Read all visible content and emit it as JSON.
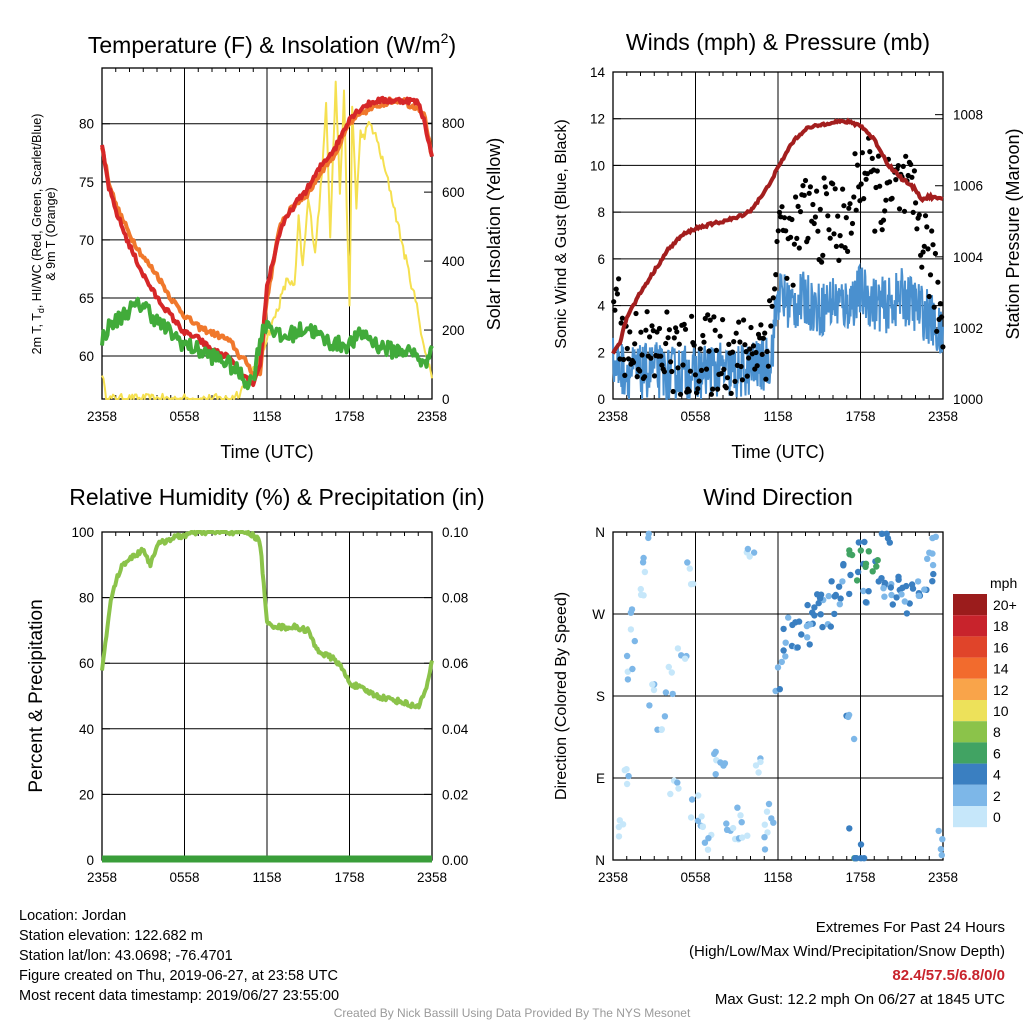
{
  "colors": {
    "temp": "#d62728",
    "dew": "#41ab3a",
    "heat_index": "#c4182b",
    "t9m": "#f0782c",
    "solar": "#f5e050",
    "wind": "#4a90cf",
    "gust": "#000000",
    "pressure": "#a31e1e",
    "rh": "#8bc34a",
    "precip": "#3a9e3a"
  },
  "chart_data": [
    {
      "id": "temperature",
      "type": "line",
      "title_main": "Temperature (F) & Insolation (W/m",
      "title_sup": "2",
      "title_end": ")",
      "xlabel": "Time (UTC)",
      "ylabel_line1": "2m T, T",
      "ylabel_sub": "d",
      "ylabel_line1_end": ", HI/WC (Red, Green, Scarlet/Blue)",
      "ylabel_line2": "& 9m T (Orange)",
      "y2label": "Solar Insolation (Yellow)",
      "xticks": [
        "2358",
        "0558",
        "1158",
        "1758",
        "2358"
      ],
      "yticks": [
        "60",
        "65",
        "70",
        "75",
        "80"
      ],
      "y2ticks": [
        "0",
        "200",
        "400",
        "600",
        "800"
      ],
      "ylim": [
        56.3,
        84.8
      ],
      "y2lim": [
        0,
        960
      ],
      "x_hours": [
        0,
        24
      ],
      "series": [
        {
          "key": "t9m",
          "hours": [
            0,
            0.5,
            1,
            2,
            3,
            4,
            5,
            6,
            7,
            8,
            9,
            9.5,
            10,
            10.5,
            11,
            11.5,
            12,
            13,
            14,
            15,
            16,
            17,
            18,
            19,
            20,
            21,
            22,
            22.5,
            23,
            23.5,
            24
          ],
          "values": [
            78,
            75,
            73,
            70.5,
            68.5,
            67,
            65,
            63.5,
            62.5,
            62,
            61.5,
            61,
            60,
            59.5,
            58.5,
            58.5,
            65,
            71.5,
            73,
            74,
            76,
            77.5,
            80,
            81,
            81.5,
            82,
            82,
            81.5,
            81.5,
            80.5,
            77
          ]
        },
        {
          "key": "temp",
          "hours": [
            0,
            0.5,
            1,
            2,
            3,
            4,
            5,
            6,
            7,
            8,
            9,
            9.5,
            10,
            10.5,
            11,
            11.5,
            12,
            13,
            14,
            15,
            16,
            17,
            18,
            19,
            20,
            21,
            22,
            22.5,
            23,
            23.5,
            24
          ],
          "values": [
            78,
            74.5,
            72.5,
            69.5,
            67,
            65,
            63.5,
            62,
            61.5,
            60.5,
            60,
            59.5,
            58.5,
            58,
            57.5,
            59,
            66,
            71,
            73,
            74.5,
            76.5,
            78,
            80.5,
            81.5,
            82,
            82,
            82,
            82,
            81.8,
            80,
            77
          ]
        },
        {
          "key": "dew",
          "hours": [
            0,
            0.5,
            1,
            2,
            3,
            4,
            5,
            6,
            7,
            8,
            9,
            10,
            10.5,
            11,
            11.5,
            12,
            13,
            14,
            15,
            16,
            17,
            18,
            19,
            20,
            21,
            22,
            23,
            23.5,
            24
          ],
          "values": [
            61.5,
            62.5,
            63,
            64,
            64.5,
            63,
            62,
            61,
            60.5,
            60,
            59.5,
            58.5,
            57.8,
            58,
            61.5,
            63,
            61.5,
            62,
            62.5,
            61.5,
            61,
            61,
            62,
            61,
            60.5,
            60.5,
            60,
            59,
            61.5
          ]
        },
        {
          "key": "solar",
          "axis": "y2",
          "hours": [
            0,
            0.2,
            0.5,
            5,
            9,
            9.5,
            10,
            10.5,
            11,
            11.5,
            12,
            12.5,
            13,
            13.5,
            14,
            14.3,
            14.6,
            15,
            15.5,
            16,
            16.3,
            16.6,
            17,
            17.3,
            17.6,
            18,
            18.2,
            18.5,
            18.8,
            19,
            19.5,
            20,
            21,
            22,
            23,
            23.5,
            24
          ],
          "values": [
            80,
            20,
            0,
            0,
            0,
            5,
            20,
            50,
            80,
            120,
            180,
            230,
            290,
            350,
            320,
            520,
            380,
            580,
            430,
            650,
            870,
            480,
            920,
            600,
            880,
            260,
            850,
            560,
            770,
            760,
            800,
            750,
            600,
            420,
            250,
            130,
            70
          ]
        }
      ]
    },
    {
      "id": "winds",
      "type": "line",
      "title": "Winds (mph) & Pressure (mb)",
      "xlabel": "Time (UTC)",
      "ylabel": "Sonic Wind & Gust (Blue, Black)",
      "y2label": "Station Pressure (Maroon)",
      "xticks": [
        "2358",
        "0558",
        "1158",
        "1758",
        "2358"
      ],
      "yticks": [
        "0",
        "2",
        "4",
        "6",
        "8",
        "10",
        "12",
        "14"
      ],
      "y2ticks": [
        "1000",
        "1002",
        "1004",
        "1006",
        "1008"
      ],
      "ylim": [
        0,
        14
      ],
      "y2lim": [
        1000,
        1009.2
      ],
      "x_hours": [
        0,
        24
      ],
      "series": [
        {
          "key": "wind",
          "hours": [
            0,
            1,
            2,
            3,
            4,
            5,
            6,
            7,
            8,
            9,
            10,
            11,
            11.5,
            12,
            13,
            14,
            15,
            16,
            17,
            18,
            19,
            20,
            21,
            22,
            23,
            24
          ],
          "values": [
            1.5,
            1.2,
            1.1,
            1.3,
            1.0,
            1.2,
            1.0,
            1.3,
            1.2,
            1.1,
            1.3,
            1.5,
            1.8,
            4.5,
            4.0,
            4.3,
            3.8,
            4.2,
            4.0,
            4.6,
            4.1,
            4.0,
            4.4,
            4.0,
            3.5,
            2.5
          ]
        },
        {
          "key": "gust",
          "hours": [
            0,
            1,
            2,
            3,
            4,
            5,
            6,
            7,
            8,
            9,
            10,
            11,
            11.5,
            12,
            13,
            14,
            15,
            16,
            17,
            18,
            19,
            20,
            21,
            22,
            23,
            24
          ],
          "values": [
            5,
            2,
            2.5,
            1.8,
            2.2,
            1.5,
            2.0,
            1.8,
            2.2,
            1.6,
            2.3,
            2.5,
            3,
            7.5,
            6.5,
            8,
            7.5,
            8,
            7,
            10,
            9,
            8.5,
            9,
            8,
            6,
            3
          ]
        },
        {
          "key": "pressure",
          "axis": "y2",
          "hours": [
            0,
            0.5,
            1,
            2,
            3,
            4,
            5,
            6,
            7,
            8,
            9,
            10,
            11,
            12,
            13,
            14,
            15,
            16,
            17,
            18,
            19,
            20,
            21,
            22,
            22.5,
            23,
            24
          ],
          "values": [
            1001.3,
            1001.6,
            1002.3,
            1003.0,
            1003.6,
            1004.2,
            1004.6,
            1004.8,
            1004.9,
            1005.0,
            1005.1,
            1005.3,
            1005.8,
            1006.5,
            1007.2,
            1007.6,
            1007.7,
            1007.8,
            1007.8,
            1007.7,
            1007.3,
            1006.6,
            1006.2,
            1005.9,
            1005.6,
            1005.7,
            1005.6
          ]
        }
      ]
    },
    {
      "id": "humidity",
      "type": "line",
      "title": "Relative Humidity (%) & Precipitation (in)",
      "ylabel": "Percent & Precipitation",
      "xticks": [
        "2358",
        "0558",
        "1158",
        "1758",
        "2358"
      ],
      "yticks": [
        "0",
        "20",
        "40",
        "60",
        "80",
        "100"
      ],
      "y2ticks": [
        "0.00",
        "0.02",
        "0.04",
        "0.06",
        "0.08",
        "0.10"
      ],
      "ylim": [
        0,
        100
      ],
      "y2lim": [
        0,
        0.1
      ],
      "x_hours": [
        0,
        24
      ],
      "series": [
        {
          "key": "rh",
          "hours": [
            0,
            0.3,
            0.6,
            1,
            1.5,
            2,
            2.5,
            3,
            3.5,
            4,
            5,
            6,
            7,
            8,
            9,
            10,
            10.5,
            11,
            11.5,
            12,
            13,
            14,
            15,
            15.5,
            16,
            17,
            17.5,
            18,
            19,
            20,
            21,
            22,
            22.5,
            23,
            23.5,
            24
          ],
          "values": [
            58,
            68,
            78,
            85,
            90,
            92,
            93,
            95,
            90,
            96,
            98,
            99,
            100,
            100,
            100,
            100,
            100,
            99,
            97,
            72,
            71,
            71,
            70,
            65,
            63,
            61,
            58,
            54,
            52,
            50,
            49,
            48,
            47,
            47,
            51,
            60
          ]
        },
        {
          "key": "precip",
          "axis": "y2",
          "hours": [
            0,
            24
          ],
          "values": [
            0,
            0
          ]
        }
      ]
    },
    {
      "id": "direction",
      "type": "scatter",
      "title": "Wind Direction",
      "ylabel": "Direction (Colored By Speed)",
      "xticks": [
        "2358",
        "0558",
        "1158",
        "1758",
        "2358"
      ],
      "yticks": [
        "N",
        "E",
        "S",
        "W",
        "N"
      ],
      "ylim": [
        0,
        360
      ],
      "x_hours": [
        0,
        24
      ],
      "legend_title": "mph",
      "legend_labels": [
        "20+",
        "18",
        "16",
        "14",
        "12",
        "10",
        "8",
        "6",
        "4",
        "2",
        "0"
      ],
      "legend_colors": [
        "#9b1c1c",
        "#c8232c",
        "#e0442a",
        "#f26b2d",
        "#f9a44a",
        "#ede15a",
        "#8bc34a",
        "#41a363",
        "#3a7fc1",
        "#7db7e8",
        "#c6e7fa"
      ],
      "points": [
        {
          "h": 0.5,
          "d": 30,
          "s": 1
        },
        {
          "h": 1,
          "d": 100,
          "s": 1
        },
        {
          "h": 1.5,
          "d": 260,
          "s": 1
        },
        {
          "h": 2,
          "d": 300,
          "s": 1
        },
        {
          "h": 2.5,
          "d": 340,
          "s": 1
        },
        {
          "h": 1.2,
          "d": 210,
          "s": 1
        },
        {
          "h": 3,
          "d": 180,
          "s": 1
        },
        {
          "h": 3.5,
          "d": 150,
          "s": 1
        },
        {
          "h": 4,
          "d": 200,
          "s": 1
        },
        {
          "h": 4.5,
          "d": 90,
          "s": 1
        },
        {
          "h": 5,
          "d": 230,
          "s": 1
        },
        {
          "h": 5.5,
          "d": 320,
          "s": 1
        },
        {
          "h": 6,
          "d": 60,
          "s": 1
        },
        {
          "h": 6.5,
          "d": 40,
          "s": 1
        },
        {
          "h": 7,
          "d": 10,
          "s": 1
        },
        {
          "h": 7.5,
          "d": 110,
          "s": 1
        },
        {
          "h": 8,
          "d": 90,
          "s": 1
        },
        {
          "h": 8.5,
          "d": 20,
          "s": 1
        },
        {
          "h": 9,
          "d": 40,
          "s": 1
        },
        {
          "h": 9.5,
          "d": 30,
          "s": 1
        },
        {
          "h": 10,
          "d": 350,
          "s": 1
        },
        {
          "h": 10.5,
          "d": 110,
          "s": 1
        },
        {
          "h": 11,
          "d": 20,
          "s": 1
        },
        {
          "h": 11.5,
          "d": 50,
          "s": 1
        },
        {
          "h": 12,
          "d": 205,
          "s": 3
        },
        {
          "h": 12.5,
          "d": 240,
          "s": 3
        },
        {
          "h": 13,
          "d": 250,
          "s": 3
        },
        {
          "h": 13.5,
          "d": 245,
          "s": 4
        },
        {
          "h": 14,
          "d": 255,
          "s": 3
        },
        {
          "h": 14.5,
          "d": 260,
          "s": 3
        },
        {
          "h": 15,
          "d": 275,
          "s": 4
        },
        {
          "h": 15.5,
          "d": 270,
          "s": 3
        },
        {
          "h": 16,
          "d": 290,
          "s": 4
        },
        {
          "h": 16.5,
          "d": 300,
          "s": 3
        },
        {
          "h": 17,
          "d": 305,
          "s": 4
        },
        {
          "h": 17.5,
          "d": 320,
          "s": 6
        },
        {
          "h": 18,
          "d": 330,
          "s": 4
        },
        {
          "h": 18.5,
          "d": 280,
          "s": 3
        },
        {
          "h": 19,
          "d": 310,
          "s": 5
        },
        {
          "h": 19.5,
          "d": 295,
          "s": 4
        },
        {
          "h": 20,
          "d": 285,
          "s": 3
        },
        {
          "h": 20.5,
          "d": 300,
          "s": 4
        },
        {
          "h": 21,
          "d": 310,
          "s": 3
        },
        {
          "h": 21.5,
          "d": 290,
          "s": 3
        },
        {
          "h": 22,
          "d": 300,
          "s": 4
        },
        {
          "h": 22.5,
          "d": 310,
          "s": 3
        },
        {
          "h": 23,
          "d": 320,
          "s": 3
        },
        {
          "h": 23.5,
          "d": 340,
          "s": 2
        },
        {
          "h": 17.5,
          "d": 15,
          "s": 5
        },
        {
          "h": 18,
          "d": 5,
          "s": 4
        },
        {
          "h": 23.8,
          "d": 20,
          "s": 2
        },
        {
          "h": 17.3,
          "d": 150,
          "s": 3
        },
        {
          "h": 18.3,
          "d": 340,
          "s": 6
        },
        {
          "h": 19.8,
          "d": 355,
          "s": 4
        },
        {
          "h": 14.8,
          "d": 280,
          "s": 4
        }
      ]
    }
  ],
  "info": {
    "location": "Location: Jordan",
    "elevation": "Station elevation: 122.682 m",
    "latlon": "Station lat/lon: 43.0698; -76.4701",
    "created": "Figure created on Thu, 2019-06-27, at 23:58 UTC",
    "recent": "Most recent data timestamp: 2019/06/27 23:55:00",
    "extremes_title": "Extremes For Past 24 Hours",
    "extremes_legend": "(High/Low/Max Wind/Precipitation/Snow Depth)",
    "extremes_values": "82.4/57.5/6.8/0/0",
    "max_gust": "Max Gust: 12.2 mph On 06/27 at 1845 UTC"
  },
  "credit": "Created By Nick Bassill Using Data Provided By The NYS Mesonet"
}
